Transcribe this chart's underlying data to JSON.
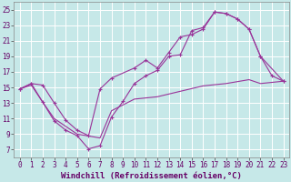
{
  "bg_color": "#c6e8e8",
  "grid_color": "#ffffff",
  "line_color": "#993399",
  "marker": "+",
  "marker_size": 3,
  "linewidth": 0.8,
  "xlabel": "Windchill (Refroidissement éolien,°C)",
  "xlabel_fontsize": 6.5,
  "xlim": [
    -0.5,
    23.5
  ],
  "ylim": [
    6.0,
    26.0
  ],
  "xticks": [
    0,
    1,
    2,
    3,
    4,
    5,
    6,
    7,
    8,
    9,
    10,
    11,
    12,
    13,
    14,
    15,
    16,
    17,
    18,
    19,
    20,
    21,
    22,
    23
  ],
  "yticks": [
    7,
    9,
    11,
    13,
    15,
    17,
    19,
    21,
    23,
    25
  ],
  "tick_fontsize": 5.5,
  "line1": {
    "x": [
      0,
      1,
      2,
      3,
      4,
      5,
      6,
      7,
      8,
      9,
      10,
      11,
      12,
      13,
      14,
      15,
      16,
      17,
      18,
      19,
      20,
      21,
      22,
      23
    ],
    "y": [
      14.8,
      15.5,
      13.1,
      10.7,
      9.5,
      8.8,
      7.1,
      7.5,
      11.2,
      13.2,
      15.5,
      16.5,
      17.2,
      19.0,
      19.2,
      22.3,
      22.7,
      24.7,
      24.5,
      23.8,
      22.5,
      19.0,
      16.5,
      15.8
    ]
  },
  "line2": {
    "x": [
      0,
      1,
      2,
      3,
      4,
      5,
      6,
      7,
      8,
      10,
      11,
      12,
      13,
      14,
      15,
      16,
      17,
      18,
      19,
      20,
      21,
      23
    ],
    "y": [
      14.8,
      15.5,
      15.3,
      13.0,
      10.8,
      9.5,
      8.8,
      14.8,
      16.2,
      17.5,
      18.5,
      17.5,
      19.5,
      21.5,
      21.8,
      22.5,
      24.7,
      24.5,
      23.8,
      22.5,
      19.0,
      15.8
    ]
  },
  "line3": {
    "x": [
      0,
      1,
      2,
      3,
      5,
      7,
      8,
      10,
      12,
      14,
      16,
      18,
      20,
      21,
      23
    ],
    "y": [
      14.8,
      15.3,
      13.1,
      11.0,
      9.0,
      8.5,
      12.0,
      13.5,
      13.8,
      14.5,
      15.2,
      15.5,
      16.0,
      15.5,
      15.8
    ]
  }
}
